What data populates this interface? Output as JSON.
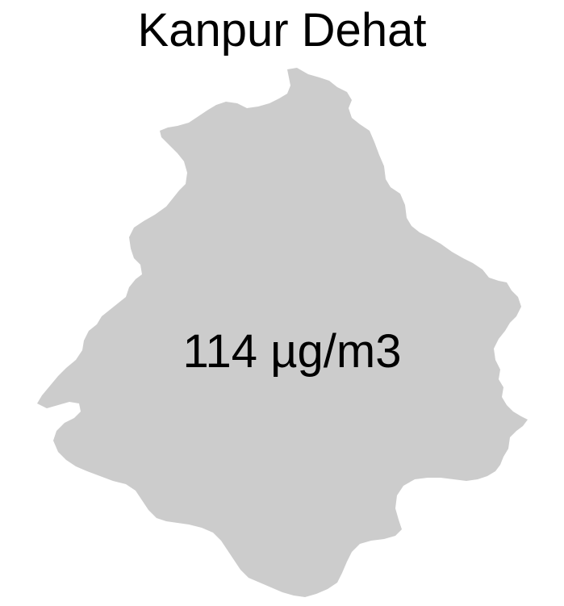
{
  "map": {
    "title": "Kanpur Dehat",
    "value_label": "114 µg/m3",
    "colors": {
      "region_fill": "#cccccc",
      "background": "#ffffff",
      "text": "#000000"
    }
  }
}
